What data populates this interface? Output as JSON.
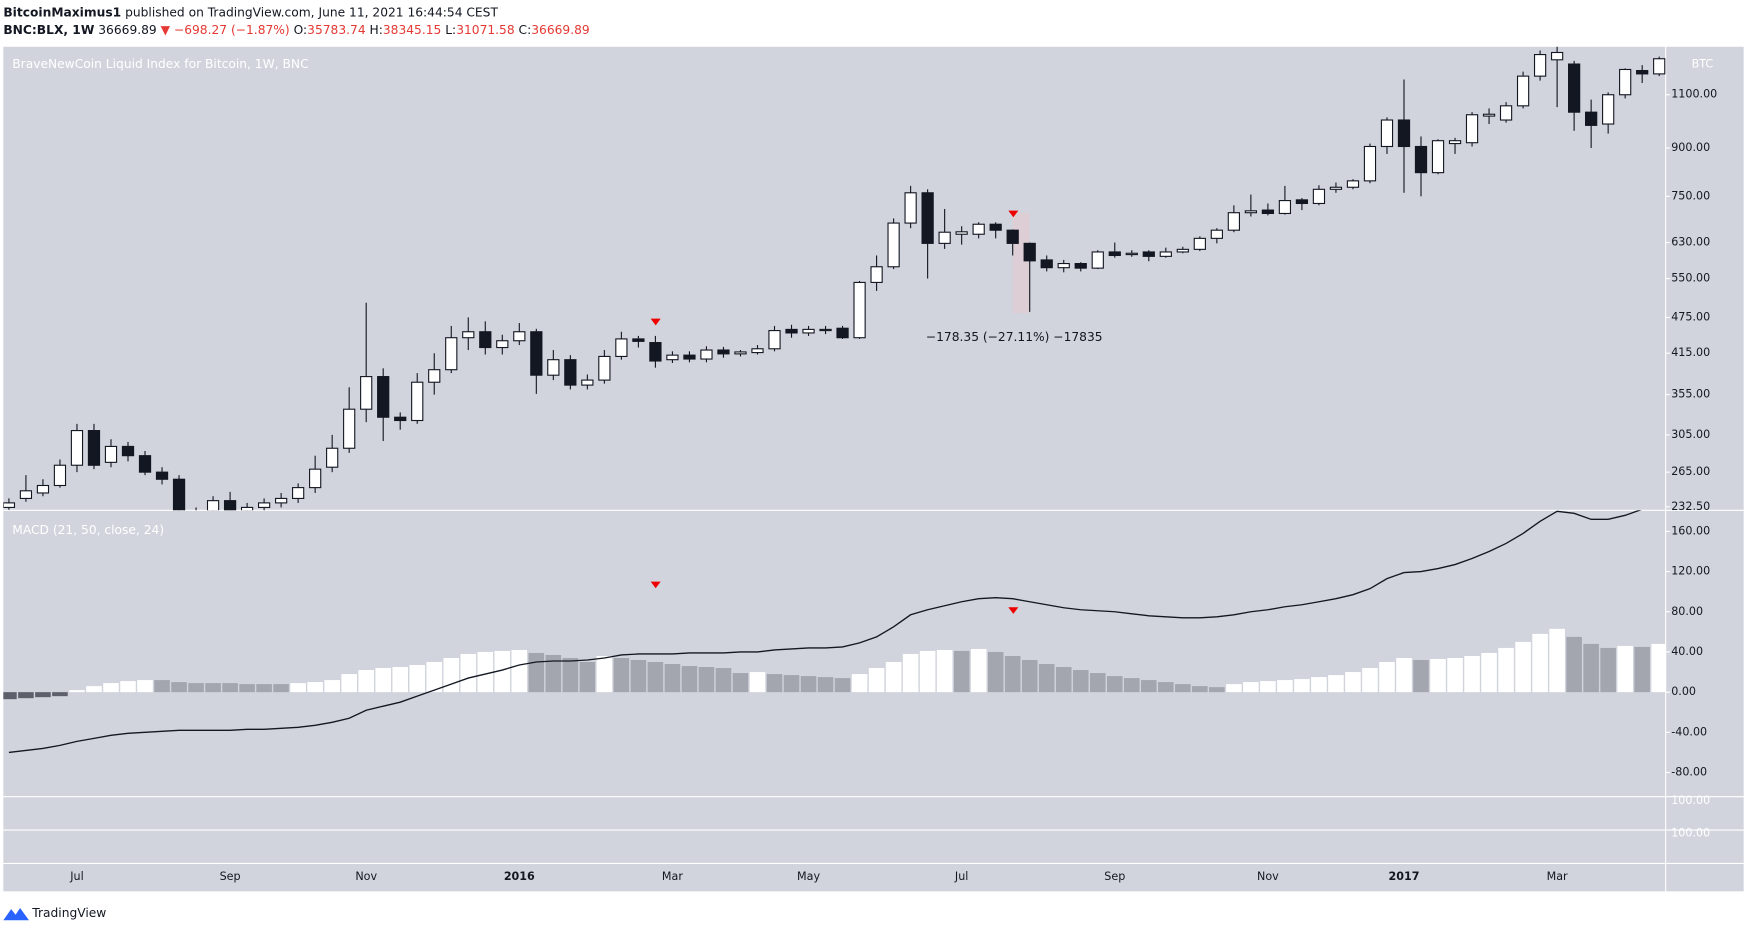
{
  "header": {
    "publisher": "BitcoinMaximus1",
    "published": "published on TradingView.com, June 11, 2021 16:44:54 CEST",
    "symbol": "BNC:BLX, 1W",
    "last": "36669.89",
    "change": "▼ −698.27 (−1.87%)",
    "ohlc": [
      {
        "label": "O:",
        "value": "35783.74"
      },
      {
        "label": "H:",
        "value": "38345.15"
      },
      {
        "label": "L:",
        "value": "31071.58"
      },
      {
        "label": "C:",
        "value": "36669.89"
      }
    ]
  },
  "footer": "TradingView",
  "extra_pane_labels": [
    "100.00",
    "100.00"
  ],
  "chart_data": [
    {
      "type": "candlestick",
      "title": "BraveNewCoin Liquid Index for Bitcoin, 1W, BNC",
      "currency": "BTC",
      "log_scale": true,
      "annotation": "−178.35 (−27.11%) −17835",
      "up_color": "#ffffff",
      "down_color": "#131722",
      "categories": [
        null,
        null,
        null,
        null,
        "Jul",
        null,
        null,
        null,
        null,
        null,
        null,
        null,
        null,
        "Sep",
        null,
        null,
        null,
        null,
        null,
        null,
        null,
        "Nov",
        null,
        null,
        null,
        null,
        null,
        null,
        null,
        null,
        "2016",
        null,
        null,
        null,
        null,
        null,
        null,
        null,
        null,
        "Mar",
        null,
        null,
        null,
        null,
        null,
        null,
        null,
        "May",
        null,
        null,
        null,
        null,
        null,
        null,
        null,
        null,
        "Jul",
        null,
        null,
        null,
        null,
        null,
        null,
        null,
        null,
        "Sep",
        null,
        null,
        null,
        null,
        null,
        null,
        null,
        null,
        "Nov",
        null,
        null,
        null,
        null,
        null,
        null,
        null,
        "2017",
        null,
        null,
        null,
        null,
        null,
        null,
        null,
        null,
        "Mar",
        null,
        null,
        null,
        null,
        null,
        null
      ],
      "open": [
        232,
        240,
        245,
        252,
        272,
        310,
        275,
        292,
        282,
        265,
        258,
        228,
        229,
        238,
        229,
        232,
        236,
        240,
        250,
        270,
        290,
        336,
        380,
        326,
        322,
        372,
        390,
        440,
        450,
        424,
        435,
        450,
        382,
        405,
        368,
        375,
        410,
        438,
        432,
        405,
        412,
        406,
        420,
        414,
        416,
        422,
        454,
        448,
        452,
        456,
        440,
        542,
        575,
        678,
        760,
        628,
        650,
        650,
        675,
        660,
        628,
        590,
        573,
        582,
        572,
        608,
        602,
        608,
        598,
        608,
        614,
        640,
        660,
        705,
        712,
        703,
        740,
        730,
        770,
        776,
        795,
        905,
        1000,
        905,
        820,
        915,
        918,
        1015,
        1000,
        1055,
        1180,
        1255,
        1235,
        1030,
        985,
        1100,
        1205,
        1190
      ],
      "close": [
        236,
        247,
        252,
        272,
        310,
        272,
        292,
        282,
        265,
        258,
        227,
        225,
        238,
        229,
        232,
        236,
        240,
        250,
        268,
        290,
        336,
        380,
        326,
        322,
        372,
        390,
        440,
        450,
        424,
        435,
        450,
        382,
        405,
        368,
        375,
        410,
        438,
        434,
        403,
        412,
        406,
        420,
        414,
        417,
        422,
        452,
        448,
        454,
        454,
        440,
        542,
        575,
        678,
        760,
        628,
        655,
        656,
        675,
        660,
        628,
        588,
        573,
        582,
        572,
        608,
        600,
        605,
        598,
        608,
        614,
        640,
        660,
        705,
        710,
        703,
        738,
        730,
        770,
        776,
        795,
        905,
        1000,
        905,
        820,
        925,
        925,
        1020,
        1022,
        1055,
        1180,
        1280,
        1290,
        1030,
        980,
        1100,
        1210,
        1190,
        1260
      ],
      "high": [
        240,
        262,
        258,
        278,
        318,
        318,
        300,
        297,
        287,
        270,
        262,
        232,
        242,
        246,
        236,
        240,
        245,
        254,
        282,
        305,
        365,
        502,
        392,
        332,
        385,
        415,
        460,
        475,
        468,
        445,
        465,
        455,
        420,
        412,
        383,
        420,
        450,
        443,
        443,
        418,
        418,
        426,
        425,
        420,
        428,
        460,
        462,
        460,
        460,
        460,
        545,
        600,
        690,
        780,
        770,
        715,
        670,
        680,
        680,
        662,
        630,
        600,
        590,
        585,
        612,
        630,
        612,
        612,
        618,
        620,
        645,
        665,
        725,
        755,
        730,
        780,
        745,
        782,
        790,
        800,
        915,
        1010,
        1165,
        940,
        930,
        935,
        1030,
        1045,
        1070,
        1200,
        1300,
        1320,
        1250,
        1080,
        1110,
        1215,
        1230,
        1270
      ],
      "low": [
        230,
        237,
        242,
        250,
        265,
        268,
        270,
        276,
        262,
        253,
        222,
        215,
        225,
        225,
        226,
        228,
        232,
        236,
        245,
        265,
        285,
        320,
        298,
        311,
        318,
        355,
        385,
        420,
        413,
        413,
        428,
        356,
        375,
        362,
        362,
        370,
        405,
        424,
        393,
        400,
        401,
        401,
        408,
        410,
        413,
        418,
        440,
        443,
        446,
        438,
        438,
        525,
        570,
        665,
        550,
        615,
        625,
        640,
        640,
        600,
        485,
        565,
        563,
        565,
        570,
        595,
        597,
        587,
        595,
        605,
        610,
        628,
        655,
        695,
        698,
        700,
        712,
        725,
        760,
        770,
        788,
        880,
        760,
        750,
        815,
        880,
        905,
        985,
        990,
        1045,
        1160,
        1050,
        960,
        900,
        950,
        1085,
        1150,
        1180
      ],
      "ylim": [
        229.5,
        1318
      ],
      "yticks": [
        {
          "value": 232.5,
          "label": "232.50"
        },
        {
          "value": 265,
          "label": "265.00"
        },
        {
          "value": 305,
          "label": "305.00"
        },
        {
          "value": 355,
          "label": "355.00"
        },
        {
          "value": 415,
          "label": "415.00"
        },
        {
          "value": 475,
          "label": "475.00"
        },
        {
          "value": 550,
          "label": "550.00"
        },
        {
          "value": 630,
          "label": "630.00"
        },
        {
          "value": 750,
          "label": "750.00"
        },
        {
          "value": 900,
          "label": "900.00"
        },
        {
          "value": 1100,
          "label": "1100.00"
        }
      ]
    },
    {
      "type": "macd",
      "title": "MACD (21, 50, close, 24)",
      "rising_color": "#ffffff",
      "falling_color": "#a3a6af",
      "negative_color": "#5d606b",
      "line_color": "#131722",
      "histogram": [
        -7,
        -6,
        -5,
        -4,
        2,
        6,
        9,
        11,
        12,
        12,
        10,
        9,
        9,
        9,
        8,
        8,
        8,
        9,
        10,
        12,
        18,
        22,
        24,
        25,
        27,
        30,
        34,
        38,
        40,
        41,
        42,
        39,
        37,
        34,
        30,
        36,
        34,
        32,
        30,
        28,
        26,
        25,
        24,
        19,
        20,
        18,
        17,
        16,
        15,
        14,
        18,
        24,
        30,
        38,
        41,
        42,
        41,
        43,
        40,
        36,
        32,
        28,
        25,
        22,
        19,
        16,
        14,
        12,
        10,
        8,
        6,
        5,
        8,
        10,
        11,
        12,
        13,
        15,
        17,
        20,
        24,
        30,
        34,
        32,
        33,
        34,
        36,
        39,
        44,
        50,
        58,
        63,
        55,
        48,
        44,
        46,
        45,
        48
      ],
      "line": [
        -60,
        -58,
        -56,
        -53,
        -49,
        -46,
        -43,
        -41,
        -40,
        -39,
        -38,
        -38,
        -38,
        -38,
        -37,
        -37,
        -36,
        -35,
        -33,
        -30,
        -26,
        -18,
        -14,
        -10,
        -4,
        2,
        8,
        14,
        18,
        22,
        27,
        30,
        31,
        31,
        32,
        34,
        37,
        38,
        38,
        38,
        39,
        39,
        39,
        40,
        40,
        42,
        43,
        44,
        44,
        45,
        49,
        55,
        65,
        77,
        82,
        86,
        90,
        93,
        94,
        93,
        90,
        87,
        84,
        82,
        81,
        80,
        78,
        76,
        75,
        74,
        74,
        75,
        77,
        80,
        82,
        85,
        87,
        90,
        93,
        97,
        103,
        113,
        119,
        120,
        123,
        127,
        133,
        140,
        148,
        158,
        170,
        180,
        178,
        172,
        172,
        176,
        182,
        190
      ],
      "ylim": [
        -104,
        181
      ],
      "yticks": [
        {
          "value": -80,
          "label": "-80.00"
        },
        {
          "value": -40,
          "label": "-40.00"
        },
        {
          "value": 0,
          "label": "0.00"
        },
        {
          "value": 40,
          "label": "40.00"
        },
        {
          "value": 80,
          "label": "80.00"
        },
        {
          "value": 120,
          "label": "120.00"
        },
        {
          "value": 160,
          "label": "160.00"
        }
      ]
    }
  ]
}
